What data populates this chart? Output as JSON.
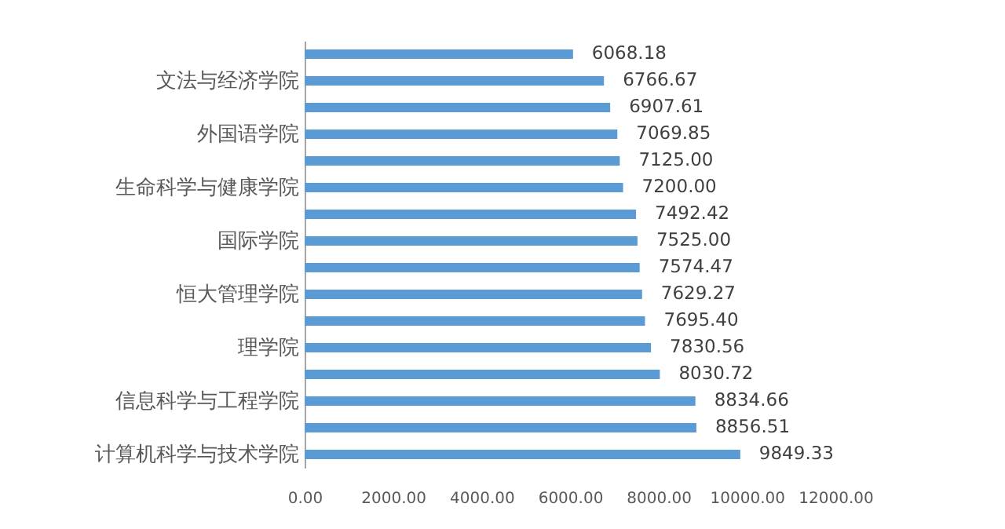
{
  "chart_data": {
    "type": "bar",
    "orientation": "horizontal",
    "categories": [
      null,
      "文法与经济学院",
      null,
      "外国语学院",
      null,
      "生命科学与健康学院",
      null,
      "国际学院",
      null,
      "恒大管理学院",
      null,
      "理学院",
      null,
      "信息科学与工程学院",
      null,
      "计算机科学与技术学院"
    ],
    "values": [
      6068.18,
      6766.67,
      6907.61,
      7069.85,
      7125.0,
      7200.0,
      7492.42,
      7525.0,
      7574.47,
      7629.27,
      7695.4,
      7830.56,
      8030.72,
      8834.66,
      8856.51,
      9849.33
    ],
    "value_labels": [
      "6068.18",
      "6766.67",
      "6907.61",
      "7069.85",
      "7125.00",
      "7200.00",
      "7492.42",
      "7525.00",
      "7574.47",
      "7629.27",
      "7695.40",
      "7830.56",
      "8030.72",
      "8834.66",
      "8856.51",
      "9849.33"
    ],
    "color": "#5b9bd5",
    "xlim": [
      0,
      12000
    ],
    "xticks": [
      {
        "value": 0,
        "label": "0.00"
      },
      {
        "value": 2000,
        "label": "2000.00"
      },
      {
        "value": 4000,
        "label": "4000.00"
      },
      {
        "value": 6000,
        "label": "6000.00"
      },
      {
        "value": 8000,
        "label": "8000.00"
      },
      {
        "value": 10000,
        "label": "10000.00"
      },
      {
        "value": 12000,
        "label": "12000.00"
      }
    ],
    "grid": false
  }
}
